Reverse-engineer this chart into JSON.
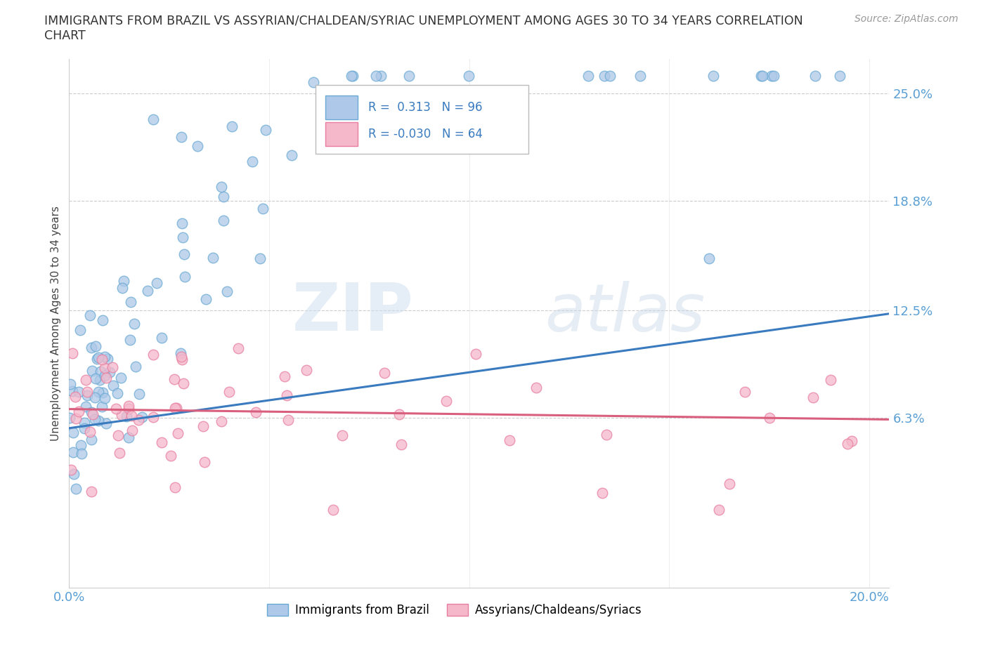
{
  "title_line1": "IMMIGRANTS FROM BRAZIL VS ASSYRIAN/CHALDEAN/SYRIAC UNEMPLOYMENT AMONG AGES 30 TO 34 YEARS CORRELATION",
  "title_line2": "CHART",
  "source": "Source: ZipAtlas.com",
  "ylabel": "Unemployment Among Ages 30 to 34 years",
  "xlim": [
    0.0,
    0.205
  ],
  "ylim": [
    -0.035,
    0.27
  ],
  "xticks": [
    0.0,
    0.05,
    0.1,
    0.15,
    0.2
  ],
  "xtick_labels": [
    "0.0%",
    "",
    "",
    "",
    "20.0%"
  ],
  "ytick_vals": [
    0.0,
    0.063,
    0.125,
    0.188,
    0.25
  ],
  "ytick_labels": [
    "",
    "6.3%",
    "12.5%",
    "18.8%",
    "25.0%"
  ],
  "gridline_vals": [
    0.063,
    0.125,
    0.188,
    0.25
  ],
  "blue_face_color": "#adc8e8",
  "blue_edge_color": "#6aaad4",
  "pink_face_color": "#f5b8cb",
  "pink_edge_color": "#e87fa0",
  "blue_line_color": "#3a7bbf",
  "pink_line_color": "#d95f7e",
  "tick_color": "#5a9fd4",
  "blue_R": 0.313,
  "blue_N": 96,
  "pink_R": -0.03,
  "pink_N": 64,
  "legend_label_blue": "Immigrants from Brazil",
  "legend_label_pink": "Assyrians/Chaldeans/Syriacs",
  "watermark_zip": "ZIP",
  "watermark_atlas": "atlas",
  "blue_line_x0": 0.0,
  "blue_line_y0": 0.057,
  "blue_line_x1": 0.205,
  "blue_line_y1": 0.123,
  "pink_line_x0": 0.0,
  "pink_line_y0": 0.068,
  "pink_line_x1": 0.205,
  "pink_line_y1": 0.062
}
